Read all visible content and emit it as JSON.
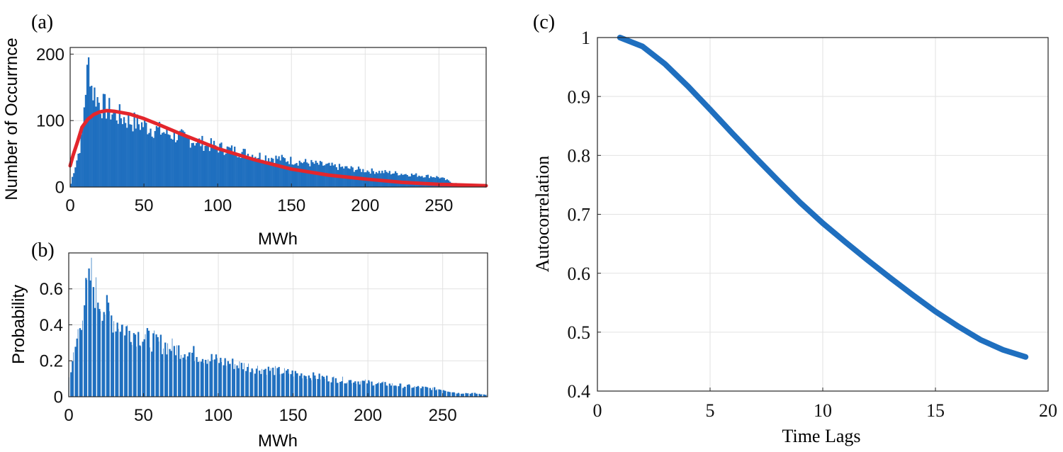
{
  "colors": {
    "bar": "#1f6fbf",
    "fit": "#e3262c",
    "line": "#1f6fbf",
    "grid": "#e2e2e2",
    "axis": "#262626"
  },
  "chart_data": [
    {
      "panel": "(a)",
      "type": "bar",
      "overlay": "fitted density curve",
      "xlabel": "MWh",
      "ylabel": "Number of Occurrnce",
      "xlim": [
        0,
        282
      ],
      "ylim": [
        0,
        210
      ],
      "xticks": [
        0,
        50,
        100,
        150,
        200,
        250
      ],
      "yticks": [
        0,
        100,
        200
      ],
      "grid": true,
      "bin_width": 1,
      "envelope": {
        "x": [
          0,
          2,
          5,
          8,
          10,
          11,
          12,
          13,
          14,
          15,
          17,
          20,
          25,
          30,
          40,
          50,
          60,
          75,
          100,
          125,
          150,
          175,
          200,
          225,
          250,
          260,
          282
        ],
        "y": [
          0,
          20,
          45,
          75,
          140,
          160,
          175,
          195,
          160,
          145,
          140,
          125,
          118,
          110,
          100,
          93,
          85,
          75,
          60,
          48,
          40,
          32,
          25,
          20,
          15,
          6,
          0
        ]
      },
      "fit_curve": {
        "x": [
          0,
          2,
          5,
          8,
          12,
          16,
          20,
          25,
          30,
          40,
          50,
          60,
          75,
          100,
          125,
          150,
          175,
          200,
          225,
          250,
          282
        ],
        "y": [
          32,
          48,
          68,
          90,
          102,
          109,
          113,
          115,
          114,
          110,
          103,
          94,
          80,
          58,
          41,
          27,
          18,
          12,
          7,
          4,
          2
        ]
      }
    },
    {
      "panel": "(b)",
      "type": "bar",
      "xlabel": "MWh",
      "ylabel": "Probability",
      "xlim": [
        0,
        280
      ],
      "ylim": [
        0,
        0.8
      ],
      "xticks": [
        0,
        50,
        100,
        150,
        200,
        250
      ],
      "yticks": [
        0,
        0.2,
        0.4,
        0.6
      ],
      "ytick_labels": [
        "0",
        "0.2",
        "0.4",
        "0.6"
      ],
      "grid": true,
      "bin_width": 1,
      "envelope": {
        "x": [
          0,
          2,
          5,
          8,
          10,
          12,
          14,
          15,
          17,
          20,
          25,
          30,
          40,
          50,
          60,
          75,
          100,
          125,
          150,
          175,
          200,
          225,
          250,
          260,
          270,
          280
        ],
        "y": [
          0.12,
          0.15,
          0.3,
          0.42,
          0.52,
          0.58,
          0.62,
          0.7,
          0.6,
          0.55,
          0.48,
          0.43,
          0.37,
          0.33,
          0.3,
          0.26,
          0.2,
          0.16,
          0.13,
          0.1,
          0.08,
          0.06,
          0.04,
          0.02,
          0.02,
          0.01
        ]
      }
    },
    {
      "panel": "(c)",
      "type": "line",
      "xlabel": "Time Lags",
      "ylabel": "Autocorrelation",
      "xlim": [
        0,
        20
      ],
      "ylim": [
        0.4,
        1
      ],
      "xticks": [
        0,
        5,
        10,
        15,
        20
      ],
      "yticks": [
        0.4,
        0.5,
        0.6,
        0.7,
        0.8,
        0.9,
        1
      ],
      "ytick_labels": [
        "0.4",
        "0.5",
        "0.6",
        "0.7",
        "0.8",
        "0.9",
        "1"
      ],
      "grid": true,
      "series": [
        {
          "x": [
            1,
            2,
            3,
            4,
            5,
            6,
            7,
            8,
            9,
            10,
            11,
            12,
            13,
            14,
            15,
            16,
            17,
            18,
            19
          ],
          "values": [
            1.0,
            0.985,
            0.955,
            0.918,
            0.878,
            0.837,
            0.797,
            0.758,
            0.72,
            0.685,
            0.653,
            0.622,
            0.592,
            0.563,
            0.535,
            0.51,
            0.487,
            0.47,
            0.458
          ]
        }
      ]
    }
  ]
}
